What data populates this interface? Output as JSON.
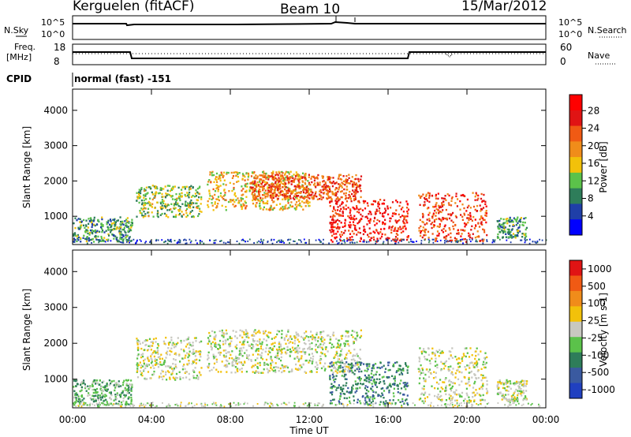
{
  "header": {
    "station": "Kerguelen (fitACF)",
    "beam": "Beam 10",
    "date": "15/Mar/2012"
  },
  "top_panel": {
    "left_label": "N.Sky",
    "left_ticks": [
      "10^5",
      "10^0"
    ],
    "right_label": "N.Search",
    "right_ticks": [
      "10^5",
      "10^0"
    ]
  },
  "freq_panel": {
    "left_label_1": "Freq.",
    "left_label_2": "[MHz]",
    "left_ticks": [
      "18",
      "8"
    ],
    "right_label": "Nave",
    "right_ticks": [
      "60",
      "0"
    ]
  },
  "cpid": {
    "label": "CPID",
    "value": "normal (fast) -151"
  },
  "colors": {
    "power_scale": [
      "#0000ff",
      "#1f3fa8",
      "#2e7d5a",
      "#5bc24a",
      "#f2c10a",
      "#f08c1a",
      "#f05a14",
      "#e01414",
      "#ff0000"
    ],
    "velocity_scale": [
      "#2040c0",
      "#3a5aa0",
      "#2e7d5a",
      "#5bc24a",
      "#c8c8c0",
      "#f2c10a",
      "#f08c1a",
      "#f05a14",
      "#e01414"
    ]
  },
  "chart_data": [
    {
      "type": "heatmap",
      "name": "power_panel",
      "ylabel": "Slant Range [km]",
      "yticks": [
        "1000",
        "2000",
        "3000",
        "4000"
      ],
      "ylim": [
        200,
        4600
      ],
      "colorbar_label": "Power [dB]",
      "colorbar_ticks": [
        "4",
        "8",
        "12",
        "16",
        "20",
        "24",
        "28"
      ],
      "regions": [
        {
          "t0": 0.0,
          "t1": 3.0,
          "r0": 300,
          "r1": 1000,
          "level": 0.3
        },
        {
          "t0": 3.2,
          "t1": 6.5,
          "r0": 1000,
          "r1": 1900,
          "level": 0.4
        },
        {
          "t0": 6.8,
          "t1": 12.0,
          "r0": 1200,
          "r1": 2300,
          "level": 0.55
        },
        {
          "t0": 9.0,
          "t1": 14.6,
          "r0": 1500,
          "r1": 2200,
          "level": 0.75
        },
        {
          "t0": 13.0,
          "t1": 17.0,
          "r0": 300,
          "r1": 1500,
          "level": 0.9
        },
        {
          "t0": 17.5,
          "t1": 21.0,
          "r0": 300,
          "r1": 1700,
          "level": 0.8
        },
        {
          "t0": 21.5,
          "t1": 23.0,
          "r0": 400,
          "r1": 1000,
          "level": 0.3
        }
      ]
    },
    {
      "type": "heatmap",
      "name": "velocity_panel",
      "ylabel": "Slant Range [km]",
      "yticks": [
        "1000",
        "2000",
        "3000",
        "4000"
      ],
      "ylim": [
        200,
        4600
      ],
      "colorbar_label": "Velocity [m s-1]",
      "colorbar_ticks": [
        "1000",
        "500",
        "100",
        "25",
        "-25",
        "-100",
        "-500",
        "-1000"
      ],
      "xlabel": "Time UT",
      "xticks": [
        "00:00",
        "04:00",
        "08:00",
        "12:00",
        "16:00",
        "20:00",
        "00:00"
      ],
      "xlim": [
        0,
        24
      ],
      "regions": [
        {
          "t0": 0.0,
          "t1": 3.0,
          "r0": 300,
          "r1": 1000,
          "level": -0.2
        },
        {
          "t0": 3.2,
          "t1": 6.5,
          "r0": 1000,
          "r1": 2200,
          "level": 0.0
        },
        {
          "t0": 6.8,
          "t1": 14.6,
          "r0": 1200,
          "r1": 2400,
          "level": 0.0
        },
        {
          "t0": 13.0,
          "t1": 17.0,
          "r0": 300,
          "r1": 1500,
          "level": -0.4
        },
        {
          "t0": 17.5,
          "t1": 21.0,
          "r0": 400,
          "r1": 1900,
          "level": 0.0
        },
        {
          "t0": 21.5,
          "t1": 23.0,
          "r0": 400,
          "r1": 1000,
          "level": -0.1
        }
      ]
    }
  ]
}
